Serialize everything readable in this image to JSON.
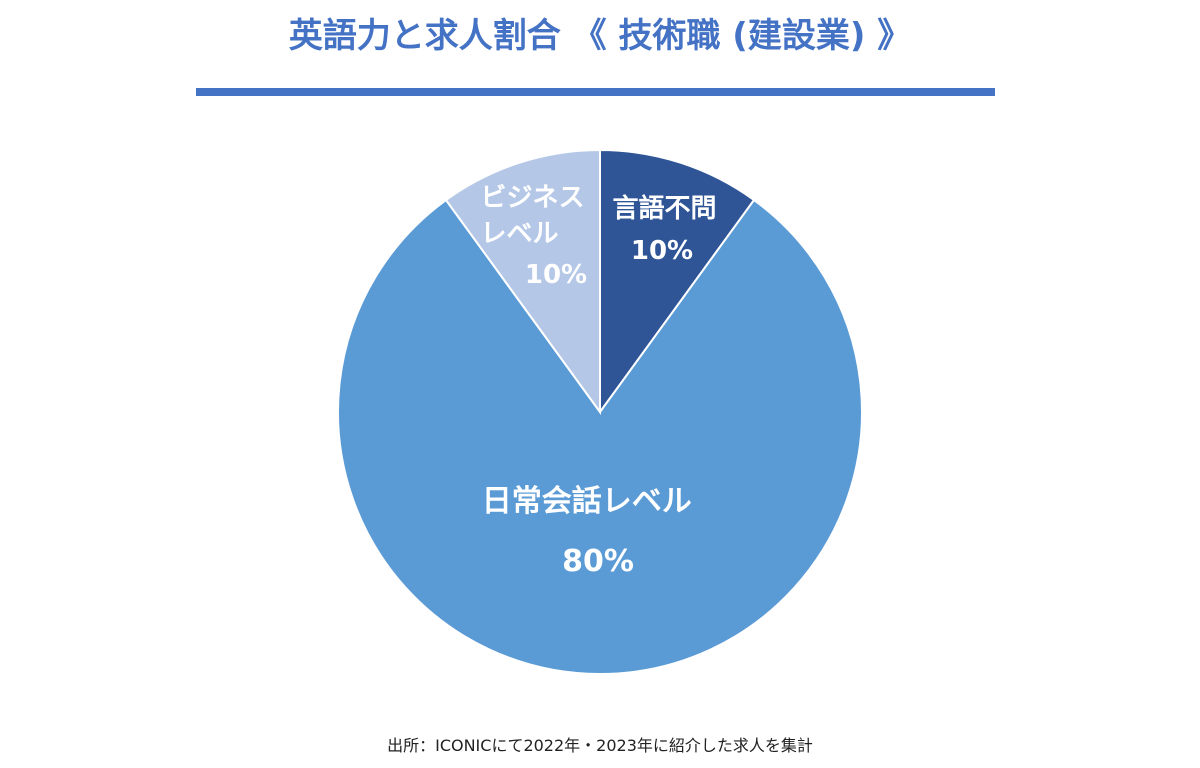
{
  "chart_data": {
    "type": "pie",
    "title": "英語力と求人割合 《 技術職 (建設業) 》",
    "slices": [
      {
        "label": "言語不問",
        "value": 10,
        "display": "10%",
        "color": "#2f5597"
      },
      {
        "label": "日常会話レベル",
        "value": 80,
        "display": "80%",
        "color": "#5b9bd5"
      },
      {
        "label": "ビジネスレベル",
        "value": 10,
        "display": "10%",
        "color": "#b4c7e7"
      }
    ],
    "start_angle_deg": 0,
    "direction": "clockwise",
    "legend": "none",
    "source": "出所：ICONICにて2022年・2023年に紹介した求人を集計"
  }
}
